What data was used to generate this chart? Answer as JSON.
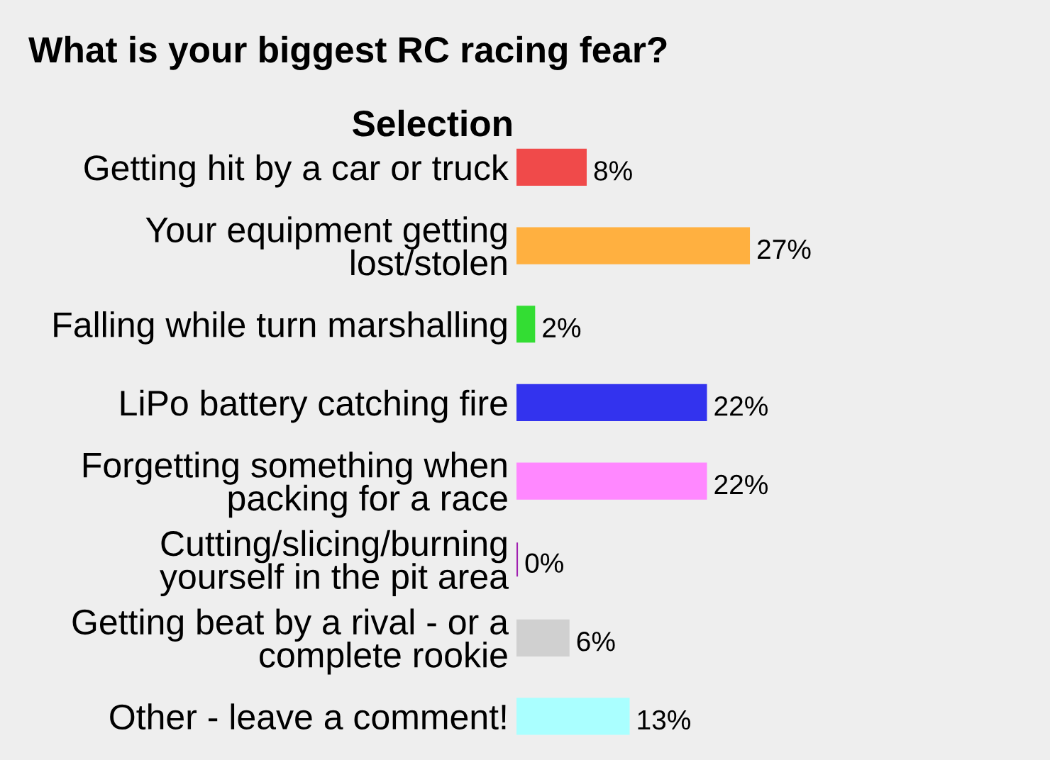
{
  "chart_data": {
    "type": "bar",
    "orientation": "horizontal",
    "title": "What is your biggest RC racing fear?",
    "ylabel": "Selection",
    "categories": [
      "Getting hit by a car or truck",
      "Your equipment getting\nlost/stolen",
      "Falling while turn marshalling",
      "LiPo battery catching fire",
      "Forgetting something when\npacking for a race",
      "Cutting/slicing/burning\nyourself in the pit area",
      "Getting beat by a rival - or a\ncomplete rookie",
      "Other - leave a comment!"
    ],
    "values": [
      8,
      27,
      2,
      22,
      22,
      0,
      6,
      13
    ],
    "value_labels": [
      "8%",
      "27%",
      "2%",
      "22%",
      "22%",
      "0%",
      "6%",
      "13%"
    ],
    "colors": [
      "#f04a4a",
      "#ffb040",
      "#33dd33",
      "#3333ee",
      "#ff88ff",
      "#a020b0",
      "#d0d0d0",
      "#aaffff"
    ]
  }
}
